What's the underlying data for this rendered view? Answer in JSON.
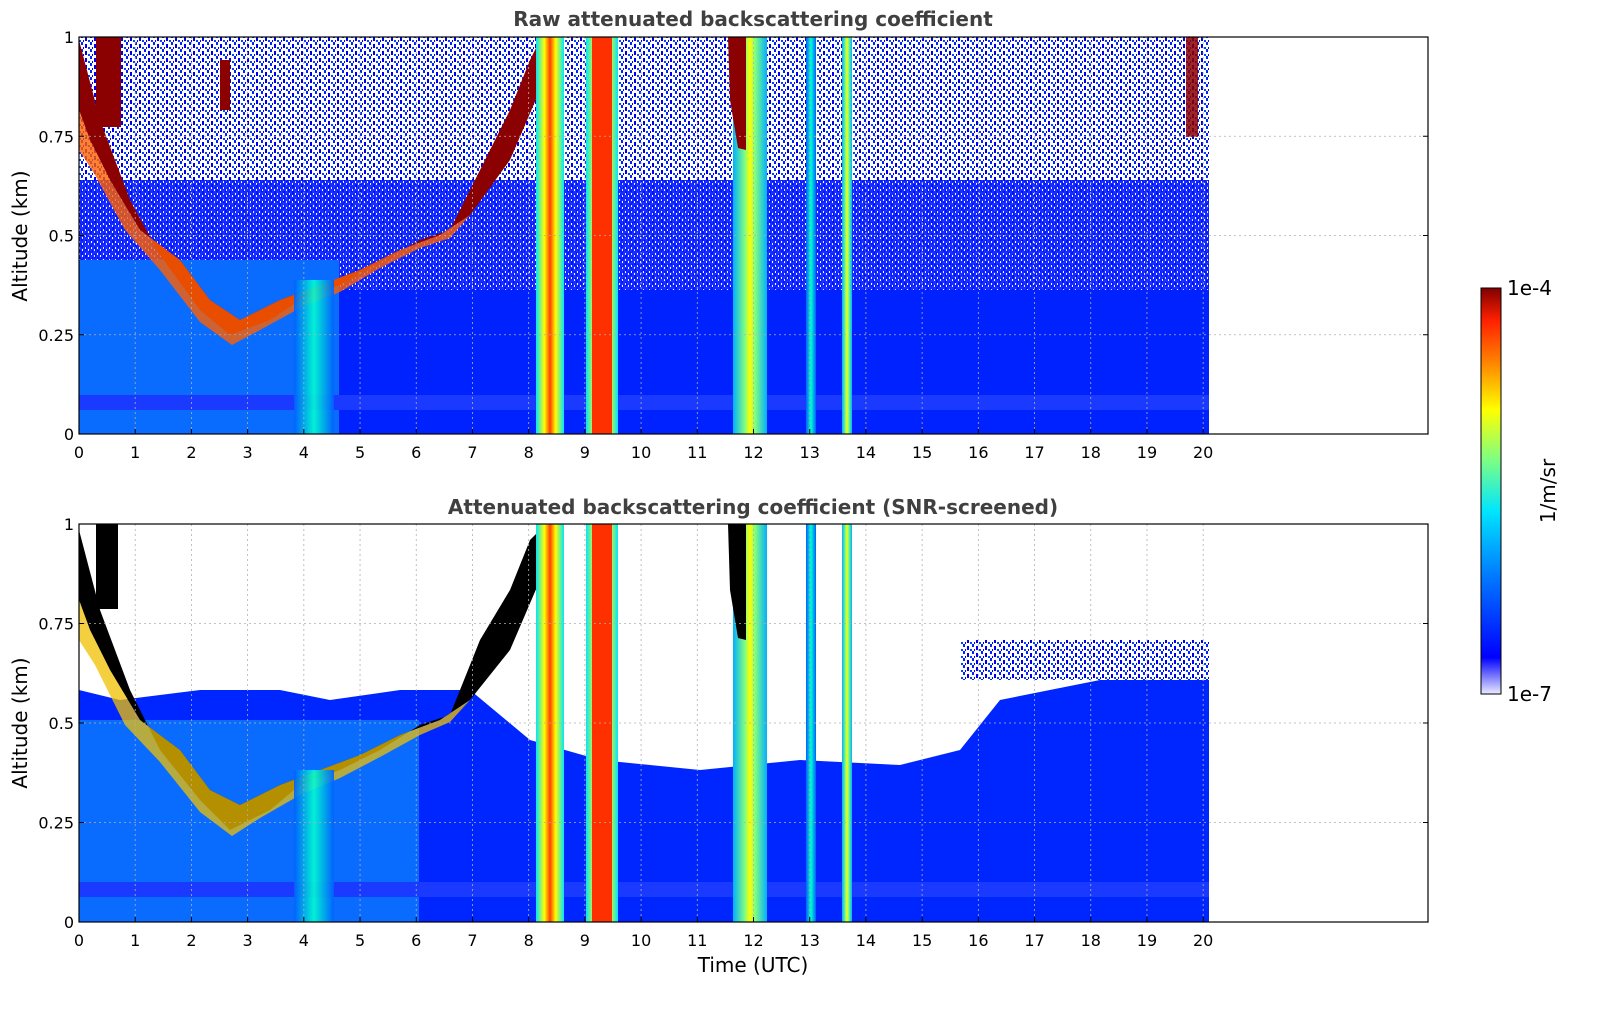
{
  "figure": {
    "xlabel": "Time (UTC)"
  },
  "colorbar": {
    "label": "1/m/sr",
    "max_label": "1e-4",
    "min_label": "1e-7",
    "scale": "log",
    "range": [
      1e-07,
      0.0001
    ],
    "colormap": "jet",
    "colors": [
      "#ecebff",
      "#0000ff",
      "#0080ff",
      "#00e5ff",
      "#80ff80",
      "#ffff00",
      "#ff8000",
      "#ff2000",
      "#800000"
    ]
  },
  "chart_data": [
    {
      "type": "heatmap",
      "title": "Raw attenuated backscattering coefficient",
      "ylabel": "Altitude (km)",
      "xlim": [
        0,
        24
      ],
      "ylim": [
        0,
        1
      ],
      "data_extent_x": [
        0,
        20.1
      ],
      "x_ticks": [
        "0",
        "1",
        "2",
        "3",
        "4",
        "5",
        "6",
        "7",
        "8",
        "9",
        "10",
        "11",
        "12",
        "13",
        "14",
        "15",
        "16",
        "17",
        "18",
        "19",
        "20"
      ],
      "y_ticks": [
        "0",
        "0.25",
        "0.5",
        "0.75",
        "1"
      ],
      "grid": true,
      "features": [
        {
          "x_range": [
            0,
            7.8
          ],
          "altitude_km": [
            0.22,
            0.75
          ],
          "level": "high"
        },
        {
          "x_range": [
            8.2,
            8.5
          ],
          "altitude_km": [
            0,
            1
          ],
          "level": "high"
        },
        {
          "x_range": [
            9.0,
            9.5
          ],
          "altitude_km": [
            0,
            1
          ],
          "level": "high"
        },
        {
          "x_range": [
            11.7,
            12.2
          ],
          "altitude_km": [
            0,
            1
          ],
          "level": "mid"
        },
        {
          "x_range": [
            11.6,
            11.9
          ],
          "altitude_km": [
            0.72,
            1
          ],
          "level": "high"
        },
        {
          "x_range": [
            13.6,
            13.7
          ],
          "altitude_km": [
            0,
            1
          ],
          "level": "mid"
        },
        {
          "x_range": [
            19.8,
            20.0
          ],
          "altitude_km": [
            0.8,
            1
          ],
          "level": "high"
        }
      ]
    },
    {
      "type": "heatmap",
      "title": "Attenuated backscattering coefficient (SNR-screened)",
      "ylabel": "Altitude (km)",
      "xlim": [
        0,
        24
      ],
      "ylim": [
        0,
        1
      ],
      "data_extent_x": [
        0,
        20.1
      ],
      "x_ticks": [
        "0",
        "1",
        "2",
        "3",
        "4",
        "5",
        "6",
        "7",
        "8",
        "9",
        "10",
        "11",
        "12",
        "13",
        "14",
        "15",
        "16",
        "17",
        "18",
        "19",
        "20"
      ],
      "y_ticks": [
        "0",
        "0.25",
        "0.5",
        "0.75",
        "1"
      ],
      "grid": true,
      "features": [
        {
          "x_range": [
            0,
            7.8
          ],
          "altitude_km": [
            0.22,
            0.75
          ],
          "level": "saturated-black"
        },
        {
          "x_range": [
            8.2,
            8.5
          ],
          "altitude_km": [
            0,
            1
          ],
          "level": "high"
        },
        {
          "x_range": [
            9.0,
            9.5
          ],
          "altitude_km": [
            0,
            1
          ],
          "level": "high"
        },
        {
          "x_range": [
            11.7,
            12.2
          ],
          "altitude_km": [
            0,
            1
          ],
          "level": "mid"
        },
        {
          "x_range": [
            13.6,
            13.7
          ],
          "altitude_km": [
            0,
            1
          ],
          "level": "mid"
        }
      ]
    }
  ]
}
